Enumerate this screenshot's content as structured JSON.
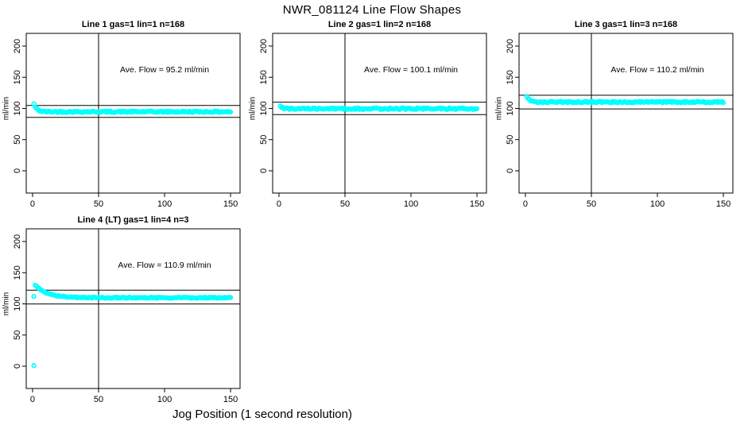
{
  "page": {
    "title": "NWR_081124  Line Flow Shapes",
    "xlabel": "Jog Position (1 second resolution)"
  },
  "colors": {
    "marker": "#00FFFF",
    "axis": "#000000",
    "text": "#000000",
    "background": "#FFFFFF"
  },
  "chart_data": [
    {
      "type": "scatter",
      "title": "Line 1 gas=1 lin=1 n=168",
      "annotation": "Ave. Flow =  95.2  ml/min",
      "ave_flow_ml_min": 95.2,
      "n": 168,
      "ylabel": "ml/min",
      "x_ticks": [
        0,
        50,
        100,
        150
      ],
      "y_ticks": [
        0,
        50,
        100,
        150,
        200
      ],
      "xlim": [
        -4.8,
        157.2
      ],
      "ylim": [
        -35.7,
        220.4
      ],
      "vline_x": 50,
      "hlines": [
        104.7,
        85.7
      ],
      "annotation_pos": {
        "x": 100,
        "y": 158
      },
      "series": {
        "name": "flow",
        "x_start": 1,
        "x_end": 150,
        "initial": 107,
        "steady": 94.7,
        "tau": 2.2,
        "noise": 1.2,
        "extra_points": []
      }
    },
    {
      "type": "scatter",
      "title": "Line 2 gas=1 lin=2 n=168",
      "annotation": "Ave. Flow =  100.1  ml/min",
      "ave_flow_ml_min": 100.1,
      "n": 168,
      "ylabel": "ml/min",
      "x_ticks": [
        0,
        50,
        100,
        150
      ],
      "y_ticks": [
        0,
        50,
        100,
        150,
        200
      ],
      "xlim": [
        -4.8,
        157.2
      ],
      "ylim": [
        -35.7,
        220.4
      ],
      "vline_x": 50,
      "hlines": [
        110.1,
        90.1
      ],
      "annotation_pos": {
        "x": 100,
        "y": 158
      },
      "series": {
        "name": "flow",
        "x_start": 1,
        "x_end": 150,
        "initial": 104,
        "steady": 99.6,
        "tau": 1.5,
        "noise": 1.3,
        "extra_points": []
      }
    },
    {
      "type": "scatter",
      "title": "Line 3 gas=1 lin=3 n=168",
      "annotation": "Ave. Flow =  110.2  ml/min",
      "ave_flow_ml_min": 110.2,
      "n": 168,
      "ylabel": "ml/min",
      "x_ticks": [
        0,
        50,
        100,
        150
      ],
      "y_ticks": [
        0,
        50,
        100,
        150,
        200
      ],
      "xlim": [
        -4.8,
        157.2
      ],
      "ylim": [
        -35.7,
        220.4
      ],
      "vline_x": 50,
      "hlines": [
        121.2,
        99.2
      ],
      "annotation_pos": {
        "x": 100,
        "y": 158
      },
      "series": {
        "name": "flow",
        "x_start": 1,
        "x_end": 150,
        "initial": 120,
        "steady": 110.3,
        "tau": 2.0,
        "noise": 1.2,
        "extra_points": []
      }
    },
    {
      "type": "scatter",
      "title": "Line 4 (LT) gas=1 lin=4 n=3",
      "annotation": "Ave. Flow =  110.9  ml/min",
      "ave_flow_ml_min": 110.9,
      "n": 3,
      "ylabel": "ml/min",
      "x_ticks": [
        0,
        50,
        100,
        150
      ],
      "y_ticks": [
        0,
        50,
        100,
        150,
        200
      ],
      "xlim": [
        -4.8,
        157.2
      ],
      "ylim": [
        -35.7,
        220.4
      ],
      "vline_x": 50,
      "hlines": [
        122.0,
        99.8
      ],
      "annotation_pos": {
        "x": 100,
        "y": 158
      },
      "series": {
        "name": "flow",
        "x_start": 2,
        "x_end": 150,
        "initial": 130.5,
        "steady": 109.8,
        "tau": 9.0,
        "noise": 0.9,
        "extra_points": [
          [
            1,
            112
          ],
          [
            1,
            1
          ]
        ]
      }
    }
  ]
}
